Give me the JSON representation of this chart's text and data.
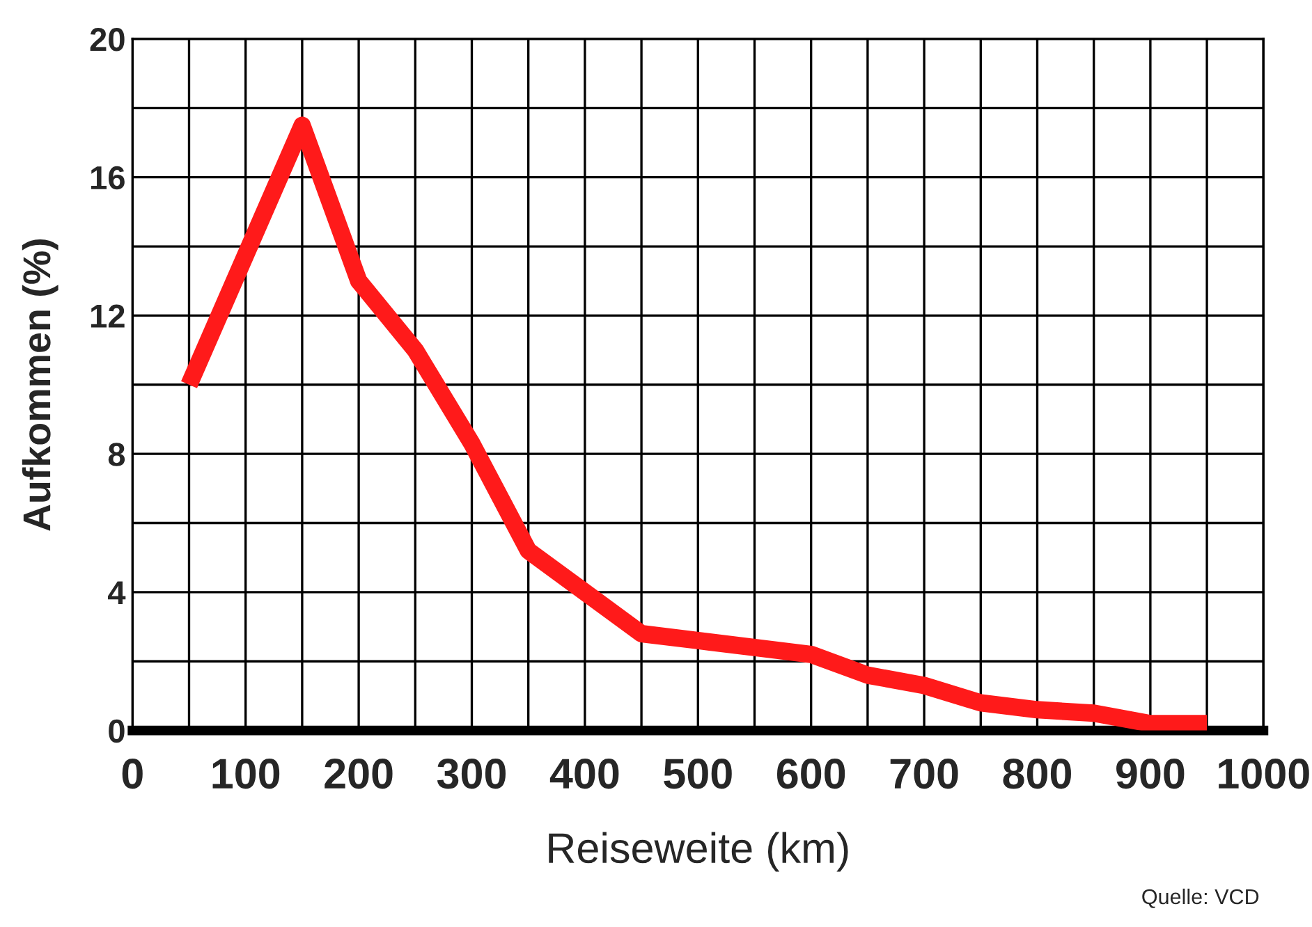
{
  "chart_data": {
    "type": "line",
    "xlabel": "Reiseweite (km)",
    "ylabel": "Aufkommen (%)",
    "x": [
      50,
      150,
      200,
      250,
      300,
      350,
      400,
      450,
      500,
      550,
      600,
      650,
      700,
      750,
      800,
      850,
      900,
      950
    ],
    "series": [
      {
        "color": "#ff1a1a",
        "values": [
          10,
          17.5,
          13,
          11,
          8.3,
          5.2,
          4,
          2.8,
          2.6,
          2.4,
          2.2,
          1.6,
          1.3,
          0.8,
          0.6,
          0.5,
          0.2,
          0.2
        ]
      }
    ],
    "xlim": [
      0,
      1000
    ],
    "xticks": [
      0,
      {
        "value": 50,
        "label": null
      },
      100,
      {
        "value": 150,
        "label": null
      },
      200,
      {
        "value": 250,
        "label": null
      },
      300,
      {
        "value": 350,
        "label": null
      },
      400,
      {
        "value": 450,
        "label": null
      },
      500,
      {
        "value": 550,
        "label": null
      },
      600,
      {
        "value": 650,
        "label": null
      },
      700,
      {
        "value": 750,
        "label": null
      },
      800,
      {
        "value": 850,
        "label": null
      },
      900,
      {
        "value": 950,
        "label": null
      },
      1000
    ],
    "ylim": [
      0,
      20
    ],
    "yticks": [
      0,
      {
        "value": 2,
        "label": null
      },
      4,
      {
        "value": 6,
        "label": null
      },
      8,
      {
        "value": 10,
        "label": null
      },
      12,
      {
        "value": 14,
        "label": null
      },
      16,
      {
        "value": 18,
        "label": null
      },
      20
    ],
    "grid": true,
    "legend": false,
    "marker": "none",
    "line_style": "solid",
    "annotations": [
      "Quelle: VCD"
    ]
  }
}
